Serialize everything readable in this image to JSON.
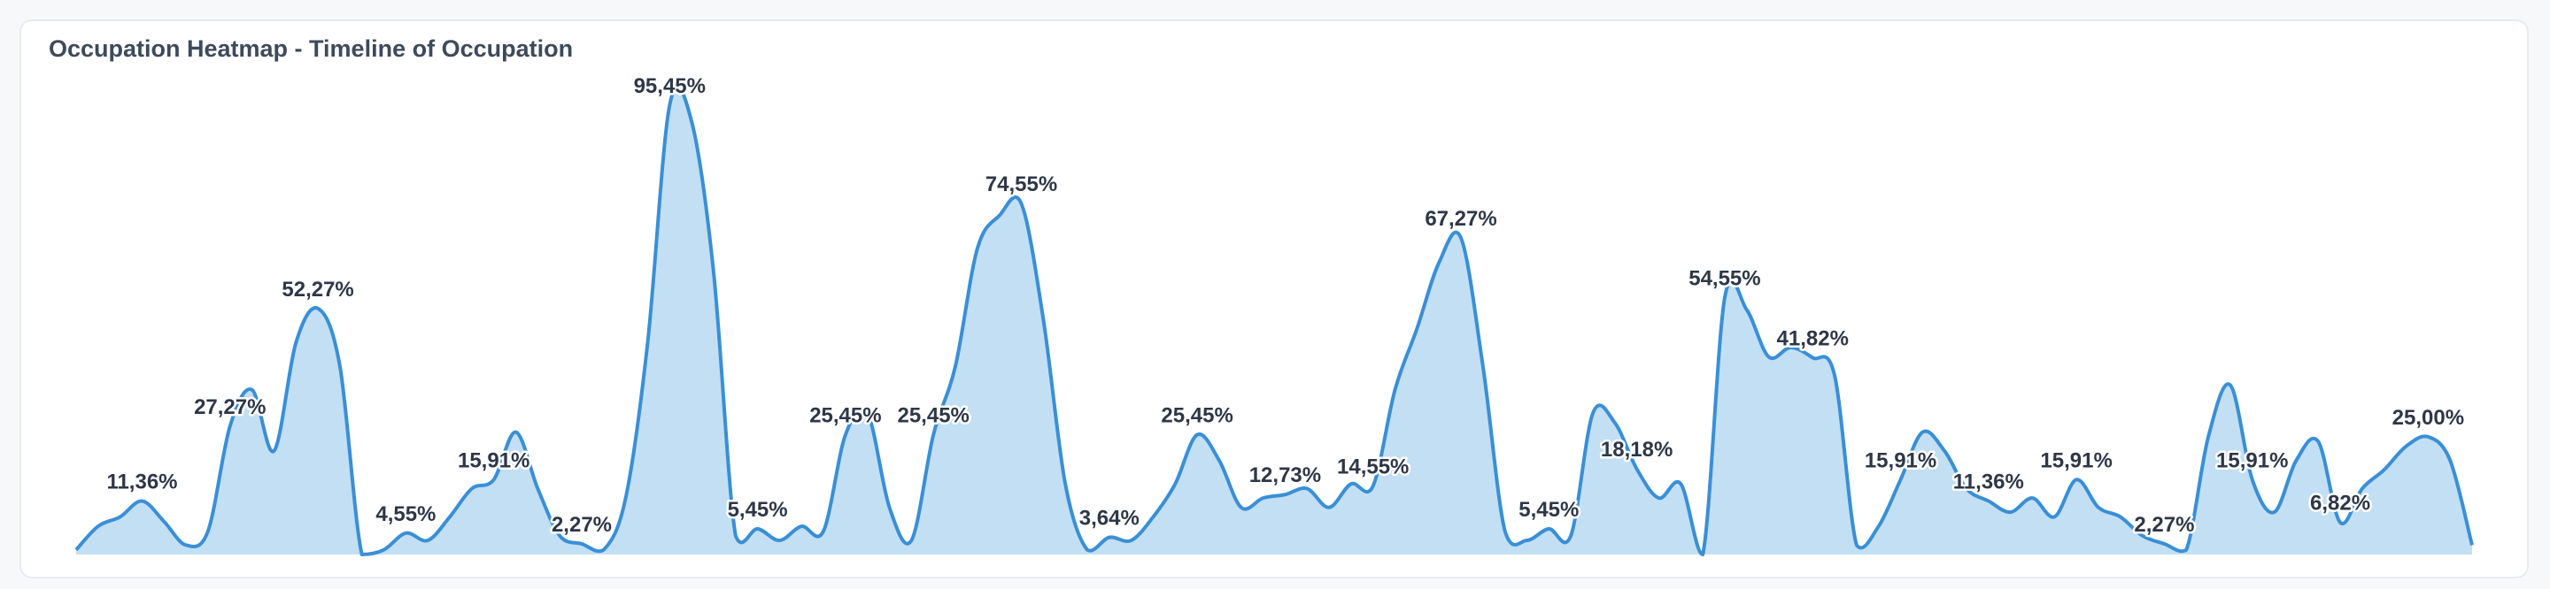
{
  "chart_data": {
    "type": "area",
    "title": "Occupation Heatmap - Timeline of Occupation",
    "color": "#3a8fd6",
    "fill": "#c2dff3",
    "values": [
      1,
      6,
      8,
      11.36,
      7,
      2,
      5,
      27.27,
      35,
      22,
      45,
      52.27,
      40,
      0,
      1,
      4.55,
      3,
      8,
      14,
      15.91,
      26,
      14,
      4,
      2.27,
      1,
      12,
      45,
      95.45,
      92,
      60,
      4,
      5.45,
      3,
      6,
      5,
      25.45,
      30,
      10,
      3,
      25.45,
      40,
      65,
      72,
      74.55,
      50,
      15,
      1,
      3.64,
      3,
      8,
      15,
      25.45,
      20,
      10,
      12,
      12.73,
      14,
      10,
      15,
      14.55,
      35,
      48,
      62,
      67.27,
      40,
      5,
      3,
      5.45,
      4,
      30,
      28,
      18.18,
      12,
      15,
      0,
      54.55,
      52,
      42,
      44,
      41.82,
      38,
      2,
      6,
      15.91,
      26,
      22,
      14,
      11.36,
      9,
      12,
      8,
      15.91,
      10,
      8,
      4,
      2.27,
      1,
      25,
      36,
      15.91,
      9,
      20,
      24,
      6.82,
      14,
      18,
      23,
      25.0,
      20,
      2
    ],
    "value_labels": [
      null,
      null,
      null,
      "11,36%",
      null,
      null,
      null,
      "27,27%",
      null,
      null,
      null,
      "52,27%",
      null,
      null,
      null,
      "4,55%",
      null,
      null,
      null,
      "15,91%",
      null,
      null,
      null,
      "2,27%",
      null,
      null,
      null,
      "95,45%",
      null,
      null,
      null,
      "5,45%",
      null,
      null,
      null,
      "25,45%",
      null,
      null,
      null,
      "25,45%",
      null,
      null,
      null,
      "74,55%",
      null,
      null,
      null,
      "3,64%",
      null,
      null,
      null,
      "25,45%",
      null,
      null,
      null,
      "12,73%",
      null,
      null,
      null,
      "14,55%",
      null,
      null,
      null,
      "67,27%",
      null,
      null,
      null,
      "5,45%",
      null,
      null,
      null,
      "18,18%",
      null,
      null,
      null,
      "54,55%",
      null,
      null,
      null,
      "41,82%",
      null,
      null,
      null,
      "15,91%",
      null,
      null,
      null,
      "11,36%",
      null,
      null,
      null,
      "15,91%",
      null,
      null,
      null,
      "2,27%",
      null,
      null,
      null,
      "15,91%",
      null,
      null,
      null,
      "6,82%",
      null,
      null,
      null,
      "25,00%",
      null,
      null
    ]
  }
}
